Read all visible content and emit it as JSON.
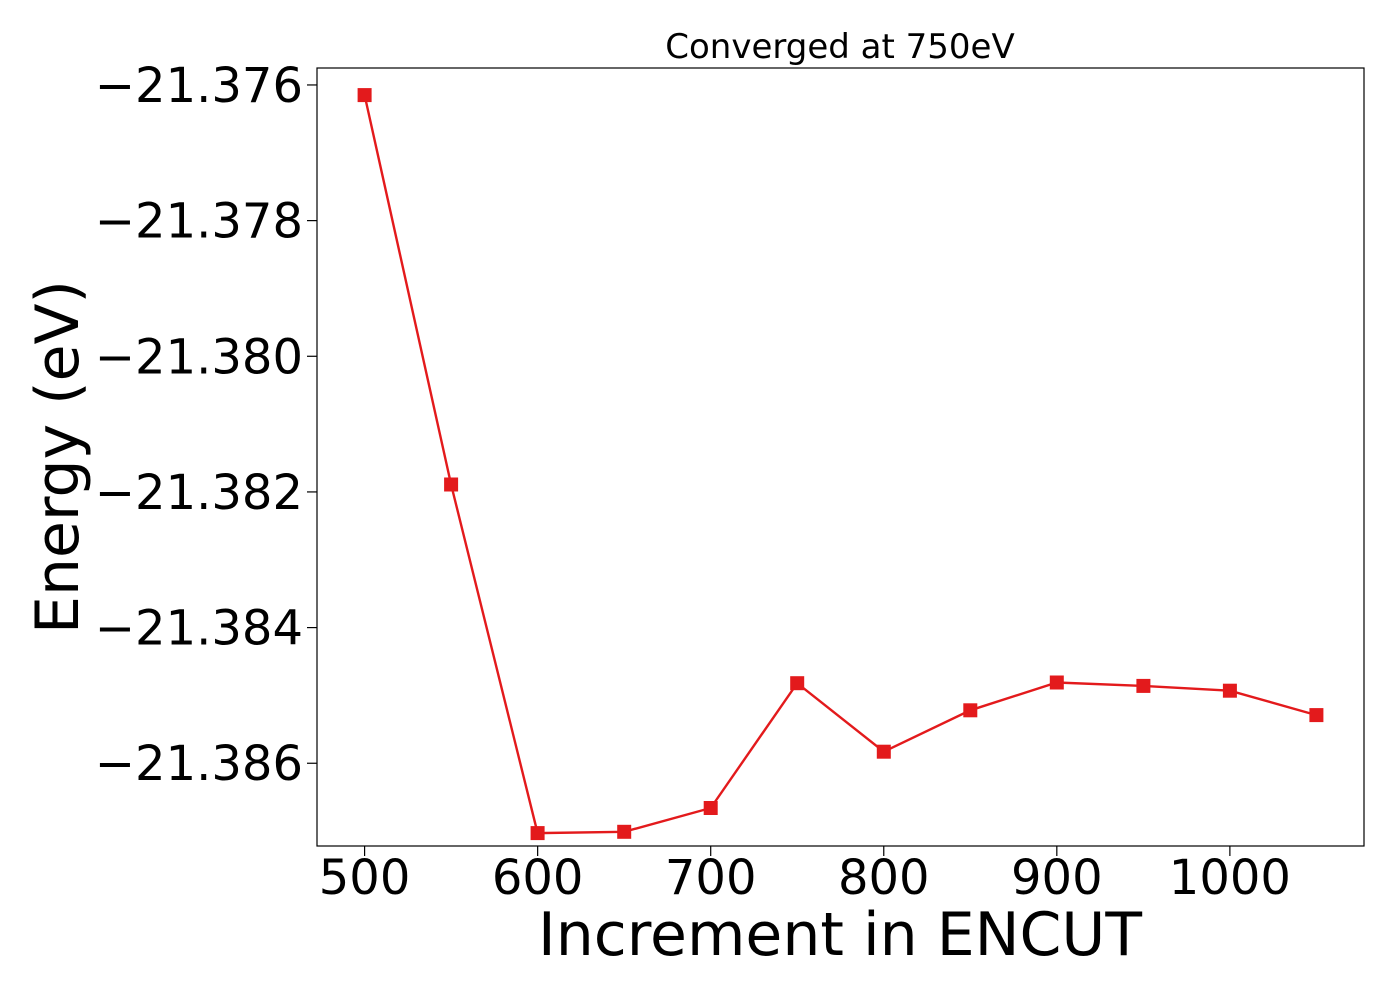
{
  "chart_data": {
    "type": "line",
    "title": "Converged at 750eV",
    "xlabel": "Increment in ENCUT",
    "ylabel": "Energy (eV)",
    "x": [
      500,
      550,
      600,
      650,
      700,
      750,
      800,
      850,
      900,
      950,
      1000,
      1050
    ],
    "series": [
      {
        "values": [
          -21.37615,
          -21.38189,
          -21.38703,
          -21.38701,
          -21.38666,
          -21.38482,
          -21.38583,
          -21.38522,
          -21.38481,
          -21.38486,
          -21.38493,
          -21.38529
        ],
        "color": "#e31a1c",
        "marker": "square"
      }
    ],
    "xlim": [
      472.5,
      1077.5
    ],
    "ylim": [
      -21.38722,
      -21.37575
    ],
    "xticks": [
      500,
      600,
      700,
      800,
      900,
      1000
    ],
    "xtick_labels": [
      "500",
      "600",
      "700",
      "800",
      "900",
      "1000"
    ],
    "yticks": [
      -21.376,
      -21.378,
      -21.38,
      -21.382,
      -21.384,
      -21.386
    ],
    "ytick_labels": [
      "−21.376",
      "−21.378",
      "−21.380",
      "−21.382",
      "−21.384",
      "−21.386"
    ],
    "grid": false,
    "legend": "none"
  }
}
